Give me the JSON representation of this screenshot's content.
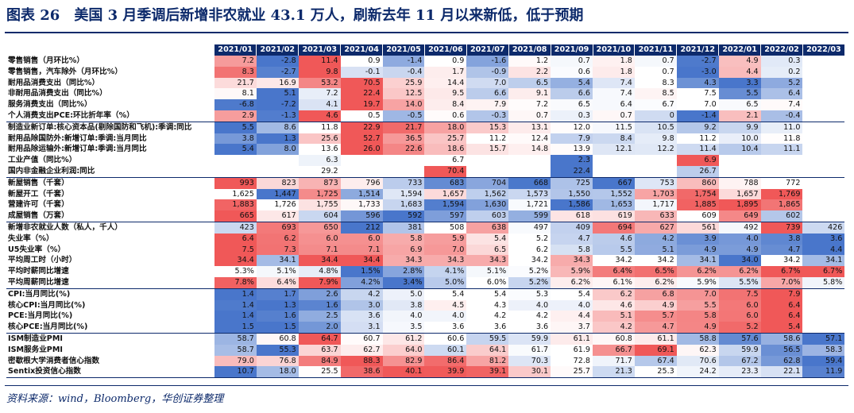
{
  "title": "图表 26　美国 3 月季调后新增非农就业 43.1 万人，刷新去年 11 月以来新低，低于预期",
  "source": "资料来源：wind，Bloomberg，华创证券整理",
  "columns": [
    "2021/01",
    "2021/02",
    "2021/03",
    "2021/04",
    "2021/05",
    "2021/06",
    "2021/07",
    "2021/08",
    "2021/09",
    "2021/10",
    "2021/11",
    "2021/12",
    "2022/01",
    "2022/02",
    "2022/03"
  ],
  "colors": {
    "high": "#ef4f4f",
    "low": "#3f6fc8",
    "neutral": "#ffffff",
    "header": "#0d2a6b"
  },
  "rows": [
    {
      "label": "零售销售（月环比%）",
      "values": [
        "7.2",
        "-2.8",
        "11.4",
        "0.9",
        "-1.4",
        "0.9",
        "-1.6",
        "1.2",
        "0.7",
        "1.8",
        "0.7",
        "-2.7",
        "4.9",
        "0.3",
        ""
      ]
    },
    {
      "label": "零售销售，汽车除外（月环比%）",
      "values": [
        "8.3",
        "-2.7",
        "9.8",
        "-0.1",
        "-0.4",
        "1.7",
        "-0.9",
        "2.2",
        "0.6",
        "1.8",
        "0.7",
        "-3.0",
        "4.4",
        "0.2",
        ""
      ]
    },
    {
      "label": "耐用品消费支出（同比%）",
      "values": [
        "21.7",
        "16.9",
        "53.2",
        "70.5",
        "25.9",
        "14.4",
        "7.0",
        "6.5",
        "5.4",
        "7.4",
        "8.3",
        "4.3",
        "3.3",
        "5.2",
        ""
      ]
    },
    {
      "label": "非耐用品消费支出（同比%）",
      "values": [
        "8.1",
        "5.1",
        "7.2",
        "22.4",
        "12.5",
        "9.5",
        "6.6",
        "9.1",
        "6.6",
        "7.4",
        "8.5",
        "7.5",
        "5.5",
        "6.4",
        ""
      ]
    },
    {
      "label": "服务消费支出（同比%）",
      "values": [
        "-6.8",
        "-7.2",
        "4.1",
        "19.7",
        "14.0",
        "8.4",
        "7.9",
        "7.2",
        "6.5",
        "6.4",
        "6.7",
        "7.0",
        "6.5",
        "7.4",
        ""
      ]
    },
    {
      "label": "个人消费支出PCE:环比折年率（%）",
      "values": [
        "2.9",
        "-1.3",
        "4.6",
        "0.5",
        "-0.5",
        "0.6",
        "-0.3",
        "0.7",
        "0.3",
        "0.7",
        "0",
        "-1.4",
        "2.1",
        "-0.4",
        ""
      ]
    },
    {
      "label": "制造业新订单:核心资本品(剔除国防和飞机):季调:同比",
      "values": [
        "5.5",
        "8.6",
        "11.8",
        "22.9",
        "21.7",
        "18.0",
        "15.3",
        "13.1",
        "12.0",
        "11.5",
        "10.5",
        "9.2",
        "9.9",
        "11.0",
        ""
      ]
    },
    {
      "label": "耐用品除国防外:新增订单:季调:当月同比",
      "values": [
        "3.8",
        "1.3",
        "25.6",
        "52.7",
        "36.5",
        "25.7",
        "11.2",
        "12.4",
        "7.9",
        "8.4",
        "9.8",
        "11.2",
        "10.0",
        "11.8",
        ""
      ]
    },
    {
      "label": "耐用品除运输外:新增订单:季调:当月同比",
      "values": [
        "5.4",
        "8.0",
        "13.6",
        "26.0",
        "22.6",
        "18.6",
        "15.7",
        "14.8",
        "13.9",
        "12.1",
        "12.2",
        "11.4",
        "10.4",
        "11.1",
        ""
      ]
    },
    {
      "label": "工业产值（同比%）",
      "values": [
        "",
        "",
        "6.3",
        "",
        "",
        "6.7",
        "",
        "",
        "2.3",
        "",
        "",
        "6.9",
        "",
        "",
        ""
      ]
    },
    {
      "label": "国内非金融企业利润:同比",
      "values": [
        "",
        "",
        "29.2",
        "",
        "",
        "70.4",
        "",
        "",
        "22.4",
        "",
        "",
        "26.7",
        "",
        "",
        ""
      ]
    },
    {
      "label": "新屋销售（千套）",
      "values": [
        "993",
        "823",
        "873",
        "796",
        "733",
        "683",
        "704",
        "668",
        "725",
        "667",
        "753",
        "860",
        "788",
        "772",
        ""
      ]
    },
    {
      "label": "新屋开工（千套）",
      "values": [
        "1,625",
        "1,447",
        "1,725",
        "1,514",
        "1,594",
        "1,657",
        "1,562",
        "1,573",
        "1,550",
        "1,552",
        "1,703",
        "1,754",
        "1,657",
        "1,769",
        ""
      ]
    },
    {
      "label": "营建许可（千套）",
      "values": [
        "1,883",
        "1,726",
        "1,755",
        "1,733",
        "1,683",
        "1,594",
        "1,630",
        "1,721",
        "1,586",
        "1,653",
        "1,717",
        "1,885",
        "1,895",
        "1,865",
        ""
      ]
    },
    {
      "label": "成屋销售（万套）",
      "values": [
        "665",
        "617",
        "604",
        "596",
        "592",
        "597",
        "603",
        "599",
        "618",
        "619",
        "633",
        "609",
        "649",
        "602",
        ""
      ]
    },
    {
      "label": "新增非农就业人数（私人，千人）",
      "values": [
        "423",
        "693",
        "650",
        "212",
        "381",
        "508",
        "638",
        "497",
        "409",
        "694",
        "627",
        "561",
        "492",
        "739",
        "426"
      ]
    },
    {
      "label": "失业率（%）",
      "values": [
        "6.4",
        "6.2",
        "6.0",
        "6.0",
        "5.8",
        "5.9",
        "5.4",
        "5.2",
        "4.7",
        "4.6",
        "4.2",
        "3.9",
        "4.0",
        "3.8",
        "3.6"
      ]
    },
    {
      "label": "U5失业率（%）",
      "values": [
        "7.5",
        "7.3",
        "7.1",
        "7.1",
        "6.9",
        "7.0",
        "6.5",
        "6.2",
        "5.8",
        "5.5",
        "5.1",
        "4.9",
        "4.9",
        "4.7",
        "4.4"
      ]
    },
    {
      "label": "平均周工时（小时）",
      "values": [
        "34.4",
        "34.1",
        "34.4",
        "34.4",
        "34.3",
        "34.3",
        "34.3",
        "34.2",
        "34.3",
        "34.2",
        "34.2",
        "34.1",
        "34.0",
        "34.2",
        "34.1"
      ]
    },
    {
      "label": "平均时薪同比增速",
      "values": [
        "5.3%",
        "5.1%",
        "4.8%",
        "1.5%",
        "2.8%",
        "4.1%",
        "5.1%",
        "5.2%",
        "5.9%",
        "6.4%",
        "6.5%",
        "6.2%",
        "6.2%",
        "6.7%",
        "6.7%"
      ]
    },
    {
      "label": "平均周薪同比增速",
      "values": [
        "7.8%",
        "6.4%",
        "7.9%",
        "4.2%",
        "3.4%",
        "5.0%",
        "6.0%",
        "5.2%",
        "6.2%",
        "6.1%",
        "6.2%",
        "5.9%",
        "5.5%",
        "7.0%",
        "5.8%"
      ]
    },
    {
      "label": "CPI:当月同比(%)",
      "values": [
        "1.4",
        "1.7",
        "2.6",
        "4.2",
        "5.0",
        "5.4",
        "5.4",
        "5.3",
        "5.4",
        "6.2",
        "6.8",
        "7.0",
        "7.5",
        "7.9",
        ""
      ]
    },
    {
      "label": "核心CPI:当月同比(%)",
      "values": [
        "1.4",
        "1.3",
        "1.6",
        "3.0",
        "3.8",
        "4.5",
        "4.3",
        "4.0",
        "4.0",
        "4.6",
        "4.9",
        "5.5",
        "6.0",
        "6.4",
        ""
      ]
    },
    {
      "label": "PCE:当月同比(%)",
      "values": [
        "1.4",
        "1.6",
        "2.5",
        "3.6",
        "4.0",
        "4.0",
        "4.2",
        "4.2",
        "4.4",
        "5.1",
        "5.7",
        "5.8",
        "6.0",
        "6.4",
        ""
      ]
    },
    {
      "label": "核心PCE:当月同比(%)",
      "values": [
        "1.5",
        "1.5",
        "2.0",
        "3.1",
        "3.5",
        "3.6",
        "3.6",
        "3.6",
        "3.7",
        "4.2",
        "4.7",
        "4.9",
        "5.2",
        "5.4",
        ""
      ]
    },
    {
      "label": "ISM制造业PMI",
      "values": [
        "58.7",
        "60.8",
        "64.7",
        "60.7",
        "61.2",
        "60.6",
        "59.5",
        "59.9",
        "61.1",
        "60.8",
        "61.1",
        "58.8",
        "57.6",
        "58.6",
        "57.1"
      ]
    },
    {
      "label": "ISM服务业PMI",
      "values": [
        "58.7",
        "55.3",
        "63.7",
        "62.7",
        "64.0",
        "60.1",
        "64.1",
        "61.7",
        "61.9",
        "66.7",
        "69.1",
        "62.3",
        "59.9",
        "56.5",
        "58.3"
      ]
    },
    {
      "label": "密歇根大学消费者信心指数",
      "values": [
        "79.0",
        "76.8",
        "84.9",
        "88.3",
        "82.9",
        "86.4",
        "81.2",
        "70.3",
        "72.8",
        "71.7",
        "67.4",
        "70.6",
        "67.2",
        "62.8",
        "59.4"
      ]
    },
    {
      "label": "Sentix投资信心指数",
      "values": [
        "10.7",
        "18.0",
        "25.5",
        "38.6",
        "40.1",
        "39.9",
        "39.1",
        "30.1",
        "25.7",
        "21.3",
        "25.3",
        "24.2",
        "23.3",
        "22.1",
        "11.9"
      ]
    }
  ]
}
